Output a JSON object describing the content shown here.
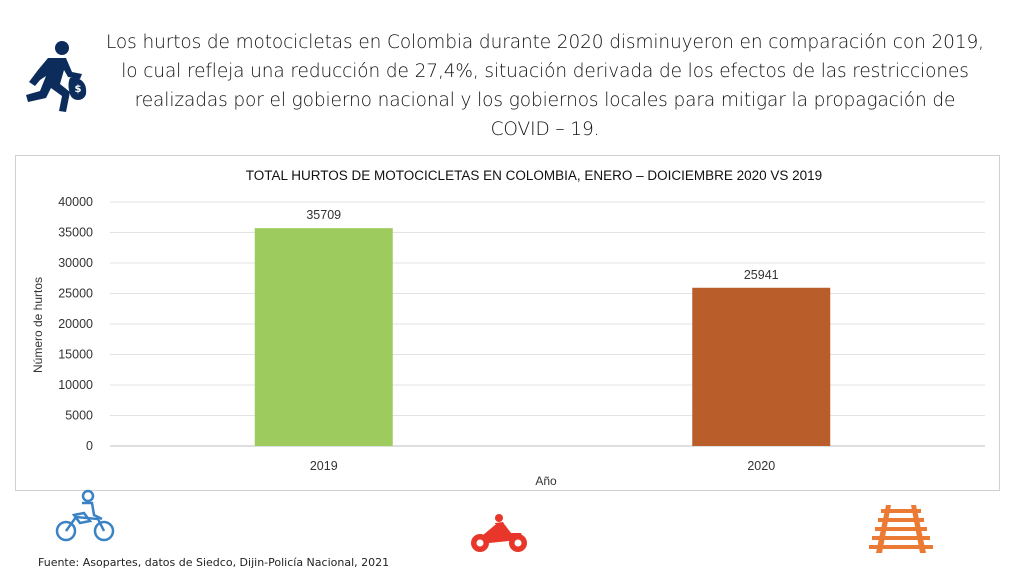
{
  "header": {
    "intro": "Los hurtos de motocicletas en Colombia durante 2020 disminuyeron en comparación con 2019, lo cual refleja una reducción de 27,4%, situación derivada de los efectos de las restricciones realizadas por el gobierno nacional y los gobiernos locales para mitigar la propagación de COVID – 19."
  },
  "footer": {
    "source": "Fuente: Asopartes, datos de Siedco, Dijin-Policía Nacional, 2021"
  },
  "icons": {
    "thief": "running-thief-icon",
    "motorcycle_outline": "motorcycle-rider-icon",
    "motorcycle_filled": "motorcycle-icon",
    "railway": "railway-track-icon"
  },
  "colors": {
    "bar_2019": "#9dcb5e",
    "bar_2020": "#b95d2a",
    "thief_icon": "#0c2d5c",
    "moto_outline_icon": "#3b82c4",
    "moto_filled_icon": "#e8372a",
    "railway_icon": "#ea7a34"
  },
  "chart_data": {
    "type": "bar",
    "title": "TOTAL HURTOS DE MOTOCICLETAS EN COLOMBIA, ENERO – DOICIEMBRE 2020 VS 2019",
    "xlabel": "Año",
    "ylabel": "Número de hurtos",
    "categories": [
      "2019",
      "2020"
    ],
    "values": [
      35709,
      25941
    ],
    "data_labels": [
      "35709",
      "25941"
    ],
    "ylim": [
      0,
      40000
    ],
    "yticks": [
      "0",
      "5000",
      "10000",
      "15000",
      "20000",
      "25000",
      "30000",
      "35000",
      "40000"
    ],
    "grid": true,
    "legend": "none"
  }
}
